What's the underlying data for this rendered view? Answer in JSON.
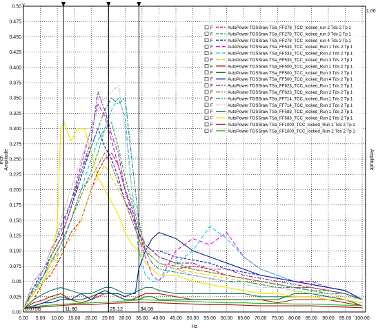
{
  "chart_data": {
    "type": "line",
    "xlabel": "Hz",
    "ylabel_left": "Amplitude",
    "ylabel_left_unit": "inch",
    "ylabel_right": "Amplitude",
    "top_corner_label": "y",
    "right_axis_top": "1.00",
    "xlim": [
      0,
      101
    ],
    "ylim": [
      0,
      0.5
    ],
    "x_ticks": [
      "0.00",
      "5.00",
      "10.00",
      "15.00",
      "20.00",
      "25.00",
      "30.00",
      "35.00",
      "40.00",
      "45.00",
      "50.00",
      "55.00",
      "60.00",
      "65.00",
      "70.00",
      "75.00",
      "80.00",
      "85.00",
      "90.00",
      "95.00",
      "100.00"
    ],
    "y_ticks": [
      "0.00",
      "0.025",
      "0.05",
      "0.075",
      "0.100",
      "0.125",
      "0.150",
      "0.175",
      "0.200",
      "0.225",
      "0.250",
      "0.275",
      "0.300",
      "0.325",
      "0.350",
      "0.375",
      "0.400",
      "0.425",
      "0.450",
      "0.475",
      "0.50"
    ],
    "cursors": [
      {
        "x": 11.8,
        "label": "11.80"
      },
      {
        "x": 25.12,
        "label": "25.12"
      },
      {
        "x": 34.08,
        "label": "34.08"
      }
    ],
    "cursor_origin_label": "0.0796",
    "grid": true,
    "legend_position": "top-right",
    "legend_prefix": "F",
    "series": [
      {
        "name": "AutoPower TOSSraw  TSa_FF278_TCC_locked_run 2 Tds 2 Tp 1",
        "color": "#d81818",
        "dash": "4,2",
        "x": [
          0,
          3,
          6,
          8,
          11,
          14,
          17,
          20,
          22,
          24,
          26,
          28,
          30,
          32,
          34,
          36,
          38,
          40,
          45,
          50,
          55,
          60,
          65,
          70,
          75,
          80,
          85,
          90,
          95,
          100
        ],
        "y": [
          0.005,
          0.02,
          0.05,
          0.06,
          0.09,
          0.13,
          0.15,
          0.2,
          0.23,
          0.25,
          0.26,
          0.24,
          0.2,
          0.17,
          0.13,
          0.1,
          0.09,
          0.08,
          0.07,
          0.075,
          0.07,
          0.06,
          0.055,
          0.05,
          0.045,
          0.04,
          0.04,
          0.035,
          0.03,
          0.02
        ]
      },
      {
        "name": "AutoPower TOSSraw  TSa_FF278_TCC_locked_run 3 Tds 2 Tp 1",
        "color": "#3aa83a",
        "dash": "4,2",
        "x": [
          0,
          3,
          6,
          8,
          11,
          14,
          17,
          20,
          22,
          24,
          26,
          28,
          30,
          32,
          34,
          36,
          38,
          40,
          45,
          50,
          55,
          60,
          65,
          70,
          75,
          80,
          85,
          90,
          95,
          100
        ],
        "y": [
          0.005,
          0.03,
          0.06,
          0.08,
          0.11,
          0.15,
          0.19,
          0.23,
          0.26,
          0.3,
          0.31,
          0.27,
          0.22,
          0.18,
          0.14,
          0.11,
          0.1,
          0.09,
          0.08,
          0.07,
          0.065,
          0.06,
          0.055,
          0.05,
          0.045,
          0.04,
          0.035,
          0.035,
          0.03,
          0.02
        ]
      },
      {
        "name": "AutoPower TOSSraw  TSa_FF278_TCC_locked_run 4 Tds 2 Tp 1",
        "color": "#2020c8",
        "dash": "4,2",
        "x": [
          0,
          3,
          6,
          8,
          11,
          14,
          17,
          20,
          22,
          24,
          26,
          28,
          30,
          32,
          34,
          36,
          38,
          40,
          45,
          50,
          55,
          60,
          65,
          70,
          75,
          80,
          85,
          90,
          95,
          100
        ],
        "y": [
          0.005,
          0.04,
          0.07,
          0.09,
          0.12,
          0.17,
          0.22,
          0.27,
          0.3,
          0.27,
          0.25,
          0.22,
          0.18,
          0.16,
          0.13,
          0.11,
          0.1,
          0.1,
          0.09,
          0.085,
          0.08,
          0.07,
          0.065,
          0.06,
          0.055,
          0.05,
          0.045,
          0.04,
          0.035,
          0.02
        ]
      },
      {
        "name": "AutoPower TOSSraw  TSa_FF533_TCC_locked_Run 1 Tds 2 Tp 1",
        "color": "#e020e0",
        "dash": "6,3",
        "x": [
          0,
          3,
          6,
          8,
          11,
          14,
          17,
          20,
          22,
          24,
          26,
          28,
          30,
          32,
          34,
          36,
          38,
          40,
          45,
          50,
          55,
          60,
          65,
          70,
          75,
          80,
          85,
          90,
          95,
          100
        ],
        "y": [
          0.005,
          0.05,
          0.07,
          0.1,
          0.13,
          0.18,
          0.24,
          0.3,
          0.34,
          0.32,
          0.28,
          0.24,
          0.2,
          0.16,
          0.12,
          0.09,
          0.06,
          0.05,
          0.1,
          0.12,
          0.11,
          0.13,
          0.09,
          0.07,
          0.06,
          0.05,
          0.05,
          0.04,
          0.035,
          0.02
        ]
      },
      {
        "name": "AutoPower TOSSraw  TSa_FF533_TCC_locked_Run 2 Tds 2 Tp 1",
        "color": "#20d0e0",
        "dash": "6,3",
        "x": [
          0,
          3,
          6,
          8,
          11,
          14,
          17,
          20,
          22,
          24,
          26,
          28,
          30,
          32,
          34,
          36,
          38,
          40,
          45,
          50,
          55,
          60,
          65,
          70,
          75,
          80,
          85,
          90,
          95,
          100
        ],
        "y": [
          0.005,
          0.03,
          0.06,
          0.08,
          0.1,
          0.15,
          0.2,
          0.25,
          0.28,
          0.3,
          0.33,
          0.35,
          0.32,
          0.2,
          0.1,
          0.06,
          0.05,
          0.05,
          0.08,
          0.1,
          0.14,
          0.12,
          0.09,
          0.07,
          0.06,
          0.05,
          0.045,
          0.04,
          0.035,
          0.02
        ]
      },
      {
        "name": "AutoPower TOSSraw  TSa_FF533_TCC_locked_Run 3 Tds 2 Tp 1",
        "color": "#e8d020",
        "dash": "6,3",
        "x": [
          0,
          3,
          6,
          8,
          11,
          14,
          17,
          20,
          22,
          24,
          26,
          28,
          30,
          32,
          34,
          36,
          38,
          40,
          45,
          50,
          55,
          60,
          65,
          70,
          75,
          80,
          85,
          90,
          95,
          100
        ],
        "y": [
          0.005,
          0.03,
          0.05,
          0.07,
          0.1,
          0.12,
          0.15,
          0.2,
          0.22,
          0.24,
          0.22,
          0.2,
          0.18,
          0.15,
          0.12,
          0.1,
          0.09,
          0.08,
          0.07,
          0.065,
          0.06,
          0.055,
          0.05,
          0.045,
          0.04,
          0.035,
          0.03,
          0.03,
          0.025,
          0.02
        ]
      },
      {
        "name": "AutoPower TOSSraw  TSa_FF500_TCC_locked_Run 1 Tds 2 Tp 1",
        "color": "#c02020",
        "dash": "",
        "x": [
          0,
          3,
          6,
          8,
          11,
          14,
          17,
          20,
          22,
          24,
          26,
          28,
          30,
          32,
          34,
          36,
          38,
          40,
          45,
          50,
          55,
          60,
          65,
          70,
          75,
          80,
          85,
          90,
          95,
          100
        ],
        "y": [
          0.005,
          0.015,
          0.02,
          0.025,
          0.03,
          0.02,
          0.015,
          0.02,
          0.025,
          0.03,
          0.03,
          0.025,
          0.02,
          0.02,
          0.025,
          0.03,
          0.03,
          0.03,
          0.025,
          0.02,
          0.02,
          0.02,
          0.02,
          0.02,
          0.015,
          0.02,
          0.02,
          0.02,
          0.015,
          0.01
        ]
      },
      {
        "name": "AutoPower TOSSraw  TSa_FF500_TCC_locked_Run 3 Tds 2 Tp 1",
        "color": "#1a7a1a",
        "dash": "",
        "x": [
          0,
          3,
          6,
          8,
          11,
          14,
          17,
          20,
          22,
          24,
          26,
          28,
          30,
          32,
          34,
          36,
          38,
          40,
          45,
          50,
          55,
          60,
          65,
          70,
          75,
          80,
          85,
          90,
          95,
          100
        ],
        "y": [
          0.005,
          0.01,
          0.015,
          0.02,
          0.025,
          0.02,
          0.02,
          0.025,
          0.03,
          0.03,
          0.03,
          0.025,
          0.02,
          0.02,
          0.02,
          0.025,
          0.025,
          0.02,
          0.02,
          0.02,
          0.02,
          0.02,
          0.02,
          0.02,
          0.02,
          0.03,
          0.03,
          0.025,
          0.02,
          0.01
        ]
      },
      {
        "name": "AutoPower TOSSraw  TSa_FF500_TCC_locked_Run 4 Tds 2 Tp 1",
        "color": "#1030a0",
        "dash": "",
        "x": [
          0,
          3,
          6,
          8,
          11,
          14,
          17,
          20,
          22,
          24,
          26,
          28,
          30,
          32,
          33,
          34,
          36,
          38,
          40,
          45,
          50,
          55,
          60,
          65,
          70,
          75,
          80,
          85,
          90,
          95,
          100
        ],
        "y": [
          0.005,
          0.01,
          0.015,
          0.015,
          0.02,
          0.02,
          0.03,
          0.02,
          0.03,
          0.035,
          0.03,
          0.03,
          0.025,
          0.03,
          0.03,
          0.07,
          0.1,
          0.12,
          0.13,
          0.12,
          0.1,
          0.09,
          0.08,
          0.07,
          0.06,
          0.055,
          0.05,
          0.045,
          0.04,
          0.035,
          0.02
        ]
      },
      {
        "name": "AutoPower TOSSraw  TSa_FF623_TCC_locked_Run 1 Tds 2 Tp 1",
        "color": "#8030a0",
        "dash": "6,2,2,2",
        "x": [
          0,
          3,
          6,
          8,
          11,
          14,
          17,
          20,
          22,
          24,
          26,
          28,
          30,
          32,
          34,
          36,
          38,
          40,
          45,
          50,
          55,
          60,
          65,
          70,
          75,
          80,
          85,
          90,
          95,
          100
        ],
        "y": [
          0.005,
          0.04,
          0.06,
          0.09,
          0.12,
          0.17,
          0.23,
          0.28,
          0.36,
          0.33,
          0.29,
          0.26,
          0.2,
          0.17,
          0.13,
          0.11,
          0.1,
          0.09,
          0.08,
          0.08,
          0.07,
          0.07,
          0.06,
          0.055,
          0.05,
          0.045,
          0.04,
          0.035,
          0.03,
          0.02
        ]
      },
      {
        "name": "AutoPower TOSSraw  TSa_FF623_TCC_locked_Run 2 Tds 2 Tp 1",
        "color": "#a07040",
        "dash": "6,2,2,2",
        "x": [
          0,
          3,
          6,
          8,
          11,
          14,
          17,
          20,
          22,
          24,
          26,
          28,
          30,
          32,
          34,
          36,
          38,
          40,
          45,
          50,
          55,
          60,
          65,
          70,
          75,
          80,
          85,
          90,
          95,
          100
        ],
        "y": [
          0.005,
          0.035,
          0.06,
          0.08,
          0.11,
          0.15,
          0.2,
          0.22,
          0.24,
          0.26,
          0.24,
          0.21,
          0.18,
          0.15,
          0.12,
          0.1,
          0.09,
          0.08,
          0.075,
          0.07,
          0.065,
          0.06,
          0.055,
          0.05,
          0.045,
          0.04,
          0.04,
          0.035,
          0.03,
          0.02
        ]
      },
      {
        "name": "AutoPower TOSSraw  TSa_FF714_TCC_locked_Run 1 Tds 2 Tp 1",
        "color": "#208888",
        "dash": "6,2,2,2",
        "x": [
          0,
          3,
          6,
          8,
          11,
          14,
          17,
          20,
          22,
          24,
          26,
          28,
          30,
          32,
          34,
          36,
          38,
          40,
          45,
          50,
          55,
          60,
          65,
          70,
          75,
          80,
          85,
          90,
          95,
          100
        ],
        "y": [
          0.005,
          0.04,
          0.06,
          0.09,
          0.14,
          0.18,
          0.23,
          0.27,
          0.3,
          0.33,
          0.35,
          0.34,
          0.35,
          0.25,
          0.15,
          0.1,
          0.08,
          0.07,
          0.065,
          0.06,
          0.055,
          0.05,
          0.05,
          0.045,
          0.04,
          0.04,
          0.035,
          0.03,
          0.03,
          0.02
        ]
      },
      {
        "name": "AutoPower TOSSraw  TSa_FF714_TCC_locked_Run 2 Tds 2 Tp 1",
        "color": "#c8c8c8",
        "dash": "6,2,2,2",
        "x": [
          0,
          3,
          6,
          8,
          11,
          14,
          17,
          20,
          22,
          24,
          26,
          28,
          30,
          32,
          34,
          36,
          38,
          40,
          45,
          50,
          55,
          60,
          65,
          70,
          75,
          80,
          85,
          90,
          95,
          100
        ],
        "y": [
          0.005,
          0.05,
          0.07,
          0.1,
          0.15,
          0.2,
          0.25,
          0.3,
          0.33,
          0.35,
          0.36,
          0.37,
          0.3,
          0.2,
          0.14,
          0.11,
          0.09,
          0.08,
          0.07,
          0.06,
          0.055,
          0.05,
          0.045,
          0.04,
          0.04,
          0.035,
          0.03,
          0.03,
          0.025,
          0.02
        ]
      },
      {
        "name": "AutoPower TOSSraw  TSa_FF583_TCC_locked_Run 1 Tds 2 Tp 1",
        "color": "#208060",
        "dash": "",
        "x": [
          0,
          3,
          6,
          8,
          11,
          14,
          17,
          20,
          22,
          24,
          26,
          28,
          30,
          32,
          34,
          36,
          38,
          40,
          45,
          50,
          55,
          60,
          65,
          70,
          75,
          80,
          85,
          90,
          95,
          100
        ],
        "y": [
          0.005,
          0.02,
          0.03,
          0.035,
          0.04,
          0.035,
          0.03,
          0.03,
          0.035,
          0.04,
          0.04,
          0.035,
          0.03,
          0.03,
          0.035,
          0.04,
          0.04,
          0.035,
          0.03,
          0.03,
          0.03,
          0.03,
          0.03,
          0.025,
          0.025,
          0.025,
          0.025,
          0.02,
          0.02,
          0.015
        ]
      },
      {
        "name": "AutoPower TOSSraw  TSa_FF583_TCC_locked_Run 2 Tds 2 Tp 1",
        "color": "#f0e800",
        "dash": "",
        "x": [
          0,
          3,
          6,
          8,
          10,
          11,
          12,
          14,
          16,
          18,
          20,
          22,
          24,
          26,
          28,
          30,
          32,
          34,
          36,
          38,
          40,
          45,
          50,
          55,
          60,
          65,
          70,
          75,
          80,
          85,
          90,
          95,
          100
        ],
        "y": [
          0.005,
          0.03,
          0.05,
          0.08,
          0.14,
          0.3,
          0.31,
          0.28,
          0.3,
          0.3,
          0.26,
          0.22,
          0.2,
          0.18,
          0.16,
          0.13,
          0.11,
          0.1,
          0.08,
          0.07,
          0.06,
          0.06,
          0.05,
          0.045,
          0.04,
          0.035,
          0.03,
          0.03,
          0.025,
          0.025,
          0.02,
          0.02,
          0.015
        ]
      },
      {
        "name": "AutoPower TOSSraw  TSa_FF1000_TCC_locked_Run 1 Tds 2 Tp 1",
        "color": "#b01818",
        "dash": "",
        "x": [
          0,
          5,
          10,
          15,
          20,
          25,
          30,
          35,
          40,
          45,
          50,
          55,
          60,
          65,
          70,
          75,
          80,
          85,
          90,
          95,
          100
        ],
        "y": [
          0.005,
          0.008,
          0.01,
          0.012,
          0.012,
          0.014,
          0.015,
          0.016,
          0.015,
          0.014,
          0.013,
          0.012,
          0.012,
          0.011,
          0.01,
          0.01,
          0.01,
          0.01,
          0.009,
          0.008,
          0.007
        ]
      },
      {
        "name": "AutoPower TOSSraw  TSa_FF1000_TCC_locked_Run 2 Tds 2 Tp 1",
        "color": "#28c028",
        "dash": "",
        "x": [
          0,
          5,
          10,
          15,
          20,
          25,
          30,
          35,
          40,
          45,
          50,
          55,
          60,
          65,
          70,
          75,
          80,
          85,
          90,
          95,
          100
        ],
        "y": [
          0.005,
          0.01,
          0.012,
          0.014,
          0.015,
          0.016,
          0.018,
          0.02,
          0.019,
          0.018,
          0.017,
          0.016,
          0.015,
          0.015,
          0.014,
          0.014,
          0.013,
          0.013,
          0.012,
          0.011,
          0.01
        ]
      }
    ]
  }
}
